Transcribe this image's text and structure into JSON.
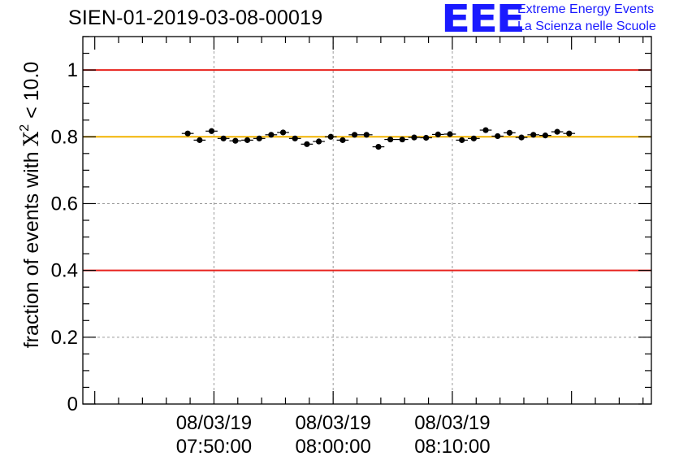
{
  "chart_data": {
    "type": "scatter",
    "title": "SIEN-01-2019-03-08-00019",
    "ylabel": {
      "prefix": "fraction of events with ",
      "symbol": "X",
      "superscript": "2",
      "suffix": " < 10.0"
    },
    "ylim": [
      0,
      1.1
    ],
    "yticks": [
      0,
      0.2,
      0.4,
      0.6,
      0.8,
      1
    ],
    "ytick_labels": [
      "0",
      "0.2",
      "0.4",
      "0.6",
      "0.8",
      "1"
    ],
    "xlim_minutes": [
      -11,
      36.7
    ],
    "xticks": [
      {
        "minute": 0,
        "date": "08/03/19",
        "time": "07:50:00"
      },
      {
        "minute": 10,
        "date": "08/03/19",
        "time": "08:00:00"
      },
      {
        "minute": 20,
        "date": "08/03/19",
        "time": "08:10:00"
      }
    ],
    "grid": true,
    "reference_lines": [
      {
        "value": 1.0,
        "color": "#e8221c"
      },
      {
        "value": 0.8,
        "color": "#f2b400"
      },
      {
        "value": 0.4,
        "color": "#e8221c"
      }
    ],
    "bin_width_minutes": 1,
    "series": [
      {
        "name": "fraction",
        "x_minutes": [
          -2.2,
          -1.2,
          -0.2,
          0.8,
          1.8,
          2.8,
          3.8,
          4.8,
          5.8,
          6.8,
          7.8,
          8.8,
          9.8,
          10.8,
          11.8,
          12.8,
          13.8,
          14.8,
          15.8,
          16.8,
          17.8,
          18.8,
          19.8,
          20.8,
          21.8,
          22.8,
          23.8,
          24.8,
          25.8,
          26.8,
          27.8,
          28.8,
          29.8
        ],
        "y": [
          0.81,
          0.79,
          0.817,
          0.795,
          0.788,
          0.79,
          0.795,
          0.806,
          0.813,
          0.795,
          0.778,
          0.786,
          0.8,
          0.79,
          0.806,
          0.806,
          0.77,
          0.792,
          0.792,
          0.798,
          0.797,
          0.807,
          0.808,
          0.79,
          0.795,
          0.82,
          0.802,
          0.812,
          0.798,
          0.806,
          0.804,
          0.815,
          0.81
        ],
        "yerr": 0.006
      }
    ]
  },
  "logo": {
    "mark": "EEE",
    "line1": "Extreme Energy Events",
    "line2": "La Scienza nelle Scuole"
  },
  "colors": {
    "accent_blue": "#1a1aff",
    "limit_red": "#e8221c",
    "target_yellow": "#f2b400",
    "grid": "#9a9a9a",
    "markers": "#000000"
  }
}
